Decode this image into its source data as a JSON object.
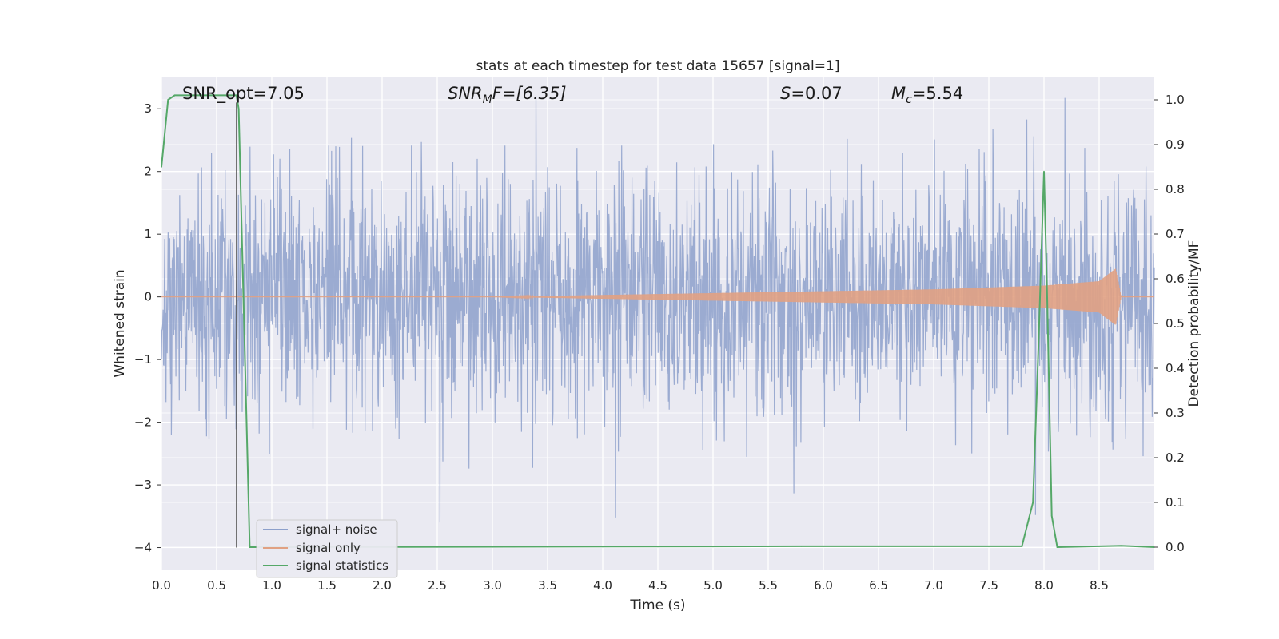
{
  "chart_data": {
    "type": "line",
    "title": "stats at each timestep for test data 15657 [signal=1]",
    "xlabel": "Time (s)",
    "ylabel": "Whitened strain",
    "y2label": "Detection probability/MF",
    "xlim": [
      0.0,
      9.0
    ],
    "ylim": [
      -4.35,
      3.5
    ],
    "y2lim": [
      -0.05,
      1.05
    ],
    "xticks": [
      "0.0",
      "0.5",
      "1.0",
      "1.5",
      "2.0",
      "2.5",
      "3.0",
      "3.5",
      "4.0",
      "4.5",
      "5.0",
      "5.5",
      "6.0",
      "6.5",
      "7.0",
      "7.5",
      "8.0",
      "8.5"
    ],
    "yticks": [
      "3",
      "2",
      "1",
      "0",
      "−1",
      "−2",
      "−3",
      "−4"
    ],
    "y2ticks": [
      "1.0",
      "0.9",
      "0.8",
      "0.7",
      "0.6",
      "0.5",
      "0.4",
      "0.3",
      "0.2",
      "0.1",
      "0.0"
    ],
    "grid": true,
    "legend_position": "lower-left",
    "series": [
      {
        "name": "signal+ noise",
        "axis": "left",
        "color": "#8da0cb",
        "description_values": "whitened noisy strain, roughly within -3 to 3",
        "noise_range": [
          -3.6,
          3.2
        ]
      },
      {
        "name": "signal only",
        "axis": "left",
        "color": "#e1a183",
        "chirp_envelope": {
          "x": [
            0.0,
            3.0,
            5.0,
            7.0,
            8.0,
            8.5,
            8.65,
            8.7,
            9.0
          ],
          "amp": [
            0.0,
            0.0,
            0.06,
            0.12,
            0.18,
            0.25,
            0.45,
            0.0,
            0.0
          ]
        }
      },
      {
        "name": "signal statistics",
        "axis": "right",
        "color": "#55a868",
        "x": [
          0.0,
          0.06,
          0.12,
          0.5,
          0.68,
          0.7,
          0.8,
          1.0,
          5.8,
          7.8,
          7.9,
          7.95,
          8.0,
          8.03,
          8.07,
          8.12,
          8.7,
          9.0
        ],
        "values": [
          0.85,
          1.0,
          1.01,
          1.01,
          1.01,
          0.98,
          0.0,
          0.0,
          0.002,
          0.002,
          0.1,
          0.45,
          0.84,
          0.55,
          0.07,
          0.0,
          0.003,
          0.0
        ]
      }
    ],
    "vertical_line": {
      "x": 0.68,
      "color": "#555555"
    },
    "annotations": {
      "snr_opt": "SNR_opt=7.05",
      "snr_mf_sym": "SNR",
      "snr_mf_sub": "M",
      "snr_mf_rest": "F=[6.35]",
      "s_sym": "S",
      "s_rest": "=0.07",
      "mc_sym": "M",
      "mc_sub": "c",
      "mc_rest": "=5.54"
    }
  }
}
